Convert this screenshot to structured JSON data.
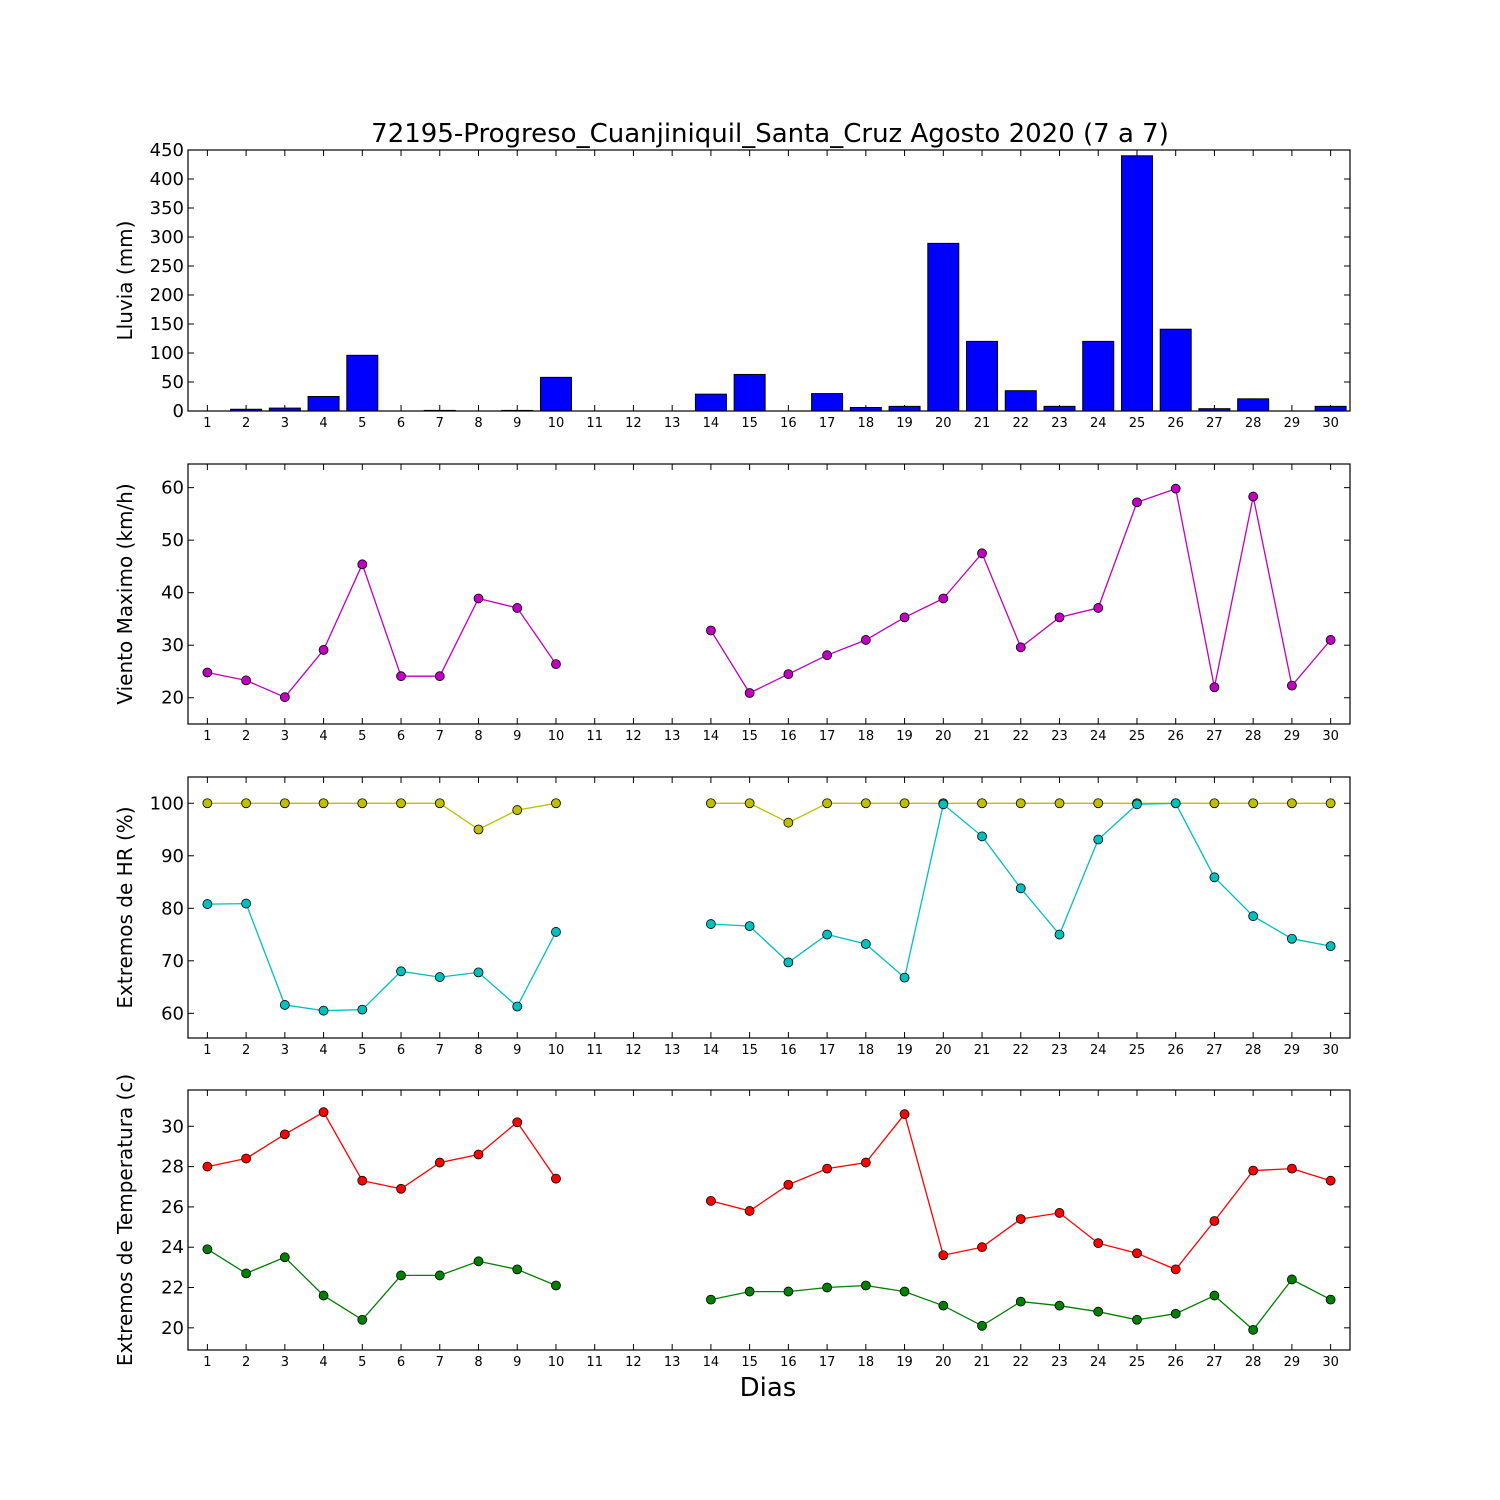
{
  "chart_data": [
    {
      "type": "bar",
      "title": "72195-Progreso_Cuanjiniquil_Santa_Cruz Agosto 2020  (7 a 7)",
      "ylabel": "Lluvia (mm)",
      "xlabel": "",
      "x": [
        1,
        2,
        3,
        4,
        5,
        6,
        7,
        8,
        9,
        10,
        11,
        12,
        13,
        14,
        15,
        16,
        17,
        18,
        19,
        20,
        21,
        22,
        23,
        24,
        25,
        26,
        27,
        28,
        29,
        30
      ],
      "xlim": [
        0.5,
        30.5
      ],
      "ylim": [
        0,
        450
      ],
      "yticks": [
        0,
        50,
        100,
        150,
        200,
        250,
        300,
        350,
        400,
        450
      ],
      "grid": false,
      "series": [
        {
          "color": "#0000ff",
          "values": [
            0,
            3,
            5,
            25,
            96,
            0,
            1,
            0,
            1,
            58,
            null,
            null,
            null,
            29,
            63,
            0,
            30,
            6,
            8,
            289,
            120,
            35,
            8,
            120,
            440,
            141,
            4,
            21,
            0,
            8
          ]
        }
      ]
    },
    {
      "type": "line",
      "ylabel": "Viento Maximo (km/h)",
      "xlabel": "",
      "x": [
        1,
        2,
        3,
        4,
        5,
        6,
        7,
        8,
        9,
        10,
        11,
        12,
        13,
        14,
        15,
        16,
        17,
        18,
        19,
        20,
        21,
        22,
        23,
        24,
        25,
        26,
        27,
        28,
        29,
        30
      ],
      "xlim": [
        0.5,
        30.5
      ],
      "ylim": [
        15,
        64.5
      ],
      "yticks": [
        20,
        30,
        40,
        50,
        60
      ],
      "grid": false,
      "series": [
        {
          "color": "#bf00bf",
          "values": [
            24.8,
            23.3,
            20.1,
            29.1,
            45.4,
            24.1,
            24.1,
            38.9,
            37.1,
            26.4,
            null,
            null,
            null,
            32.8,
            20.9,
            24.5,
            28.1,
            31.0,
            35.3,
            38.9,
            47.5,
            29.6,
            35.3,
            37.1,
            57.2,
            59.8,
            22.0,
            58.3,
            22.3,
            31.0
          ]
        }
      ]
    },
    {
      "type": "line",
      "ylabel": "Extremos de HR (%)",
      "xlabel": "",
      "x": [
        1,
        2,
        3,
        4,
        5,
        6,
        7,
        8,
        9,
        10,
        11,
        12,
        13,
        14,
        15,
        16,
        17,
        18,
        19,
        20,
        21,
        22,
        23,
        24,
        25,
        26,
        27,
        28,
        29,
        30
      ],
      "xlim": [
        0.5,
        30.5
      ],
      "ylim": [
        55.3,
        105
      ],
      "yticks": [
        60,
        70,
        80,
        90,
        100
      ],
      "grid": false,
      "series": [
        {
          "color": "#bfbf00",
          "values": [
            100,
            100,
            100,
            100,
            100,
            100,
            100,
            95,
            98.7,
            100,
            null,
            null,
            null,
            100,
            100,
            96.3,
            100,
            100,
            100,
            100,
            100,
            100,
            100,
            100,
            100,
            100,
            100,
            100,
            100,
            100
          ]
        },
        {
          "color": "#00bfbf",
          "values": [
            80.8,
            80.9,
            61.6,
            60.5,
            60.7,
            68.0,
            66.9,
            67.8,
            61.3,
            75.5,
            null,
            null,
            null,
            77.0,
            76.6,
            69.7,
            75.0,
            73.2,
            66.8,
            99.8,
            93.7,
            83.8,
            75.0,
            93.1,
            99.8,
            100,
            85.9,
            78.5,
            74.2,
            72.8
          ]
        }
      ]
    },
    {
      "type": "line",
      "ylabel": "Extremos de Temperatura (c)",
      "xlabel": "Dias",
      "x": [
        1,
        2,
        3,
        4,
        5,
        6,
        7,
        8,
        9,
        10,
        11,
        12,
        13,
        14,
        15,
        16,
        17,
        18,
        19,
        20,
        21,
        22,
        23,
        24,
        25,
        26,
        27,
        28,
        29,
        30
      ],
      "xlim": [
        0.5,
        30.5
      ],
      "ylim": [
        18.9,
        31.8
      ],
      "yticks": [
        20,
        22,
        24,
        26,
        28,
        30
      ],
      "grid": false,
      "series": [
        {
          "color": "#ff0000",
          "values": [
            28.0,
            28.4,
            29.6,
            30.7,
            27.3,
            26.9,
            28.2,
            28.6,
            30.2,
            27.4,
            null,
            null,
            null,
            26.3,
            25.8,
            27.1,
            27.9,
            28.2,
            30.6,
            23.6,
            24.0,
            25.4,
            25.7,
            24.2,
            23.7,
            22.9,
            25.3,
            27.8,
            27.9,
            27.3
          ]
        },
        {
          "color": "#008000",
          "values": [
            23.9,
            22.7,
            23.5,
            21.6,
            20.4,
            22.6,
            22.6,
            23.3,
            22.9,
            22.1,
            null,
            null,
            null,
            21.4,
            21.8,
            21.8,
            22.0,
            22.1,
            21.8,
            21.1,
            20.1,
            21.3,
            21.1,
            20.8,
            20.4,
            20.7,
            21.6,
            19.9,
            22.4,
            21.4
          ]
        }
      ]
    }
  ]
}
